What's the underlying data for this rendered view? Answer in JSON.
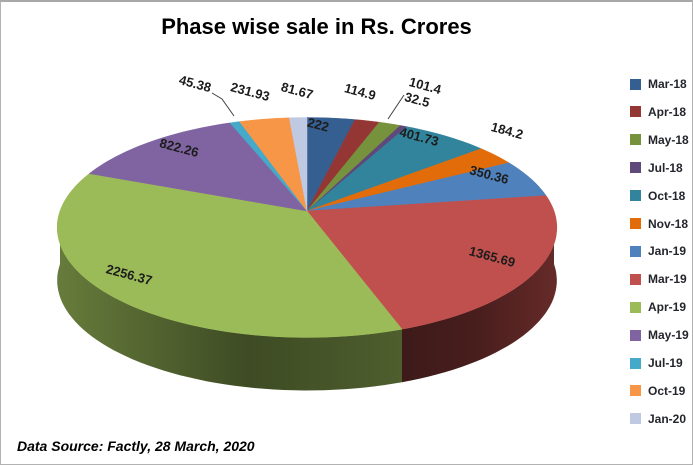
{
  "title": "Phase wise sale in Rs. Crores",
  "footer": "Data Source: Factly, 28 March, 2020",
  "chart_data": {
    "type": "pie",
    "style": "3d",
    "title": "Phase wise sale in Rs. Crores",
    "legend_position": "right",
    "start_angle_deg": 0,
    "direction": "clockwise",
    "categories": [
      "Mar-18",
      "Apr-18",
      "May-18",
      "Jul-18",
      "Oct-18",
      "Nov-18",
      "Jan-19",
      "Mar-19",
      "Apr-19",
      "May-19",
      "Jul-19",
      "Oct-19",
      "Jan-20"
    ],
    "values": [
      222,
      114.9,
      101.4,
      32.5,
      401.73,
      184.2,
      350.36,
      1365.69,
      2256.37,
      822.26,
      45.38,
      231.93,
      81.67
    ],
    "labels": [
      "222",
      "114.9",
      "101.4",
      "32.5",
      "401.73",
      "184.2",
      "350.36",
      "1365.69",
      "2256.37",
      "822.26",
      "45.38",
      "231.93",
      "81.67"
    ],
    "colors": [
      "#365F91",
      "#943634",
      "#76923C",
      "#5F497A",
      "#31849B",
      "#E36C0A",
      "#4F81BD",
      "#C0504D",
      "#9BBB59",
      "#8064A2",
      "#45A9C9",
      "#F79646",
      "#BFC9E2"
    ],
    "total": 6210.39,
    "label_color": "#1c1c1c"
  }
}
